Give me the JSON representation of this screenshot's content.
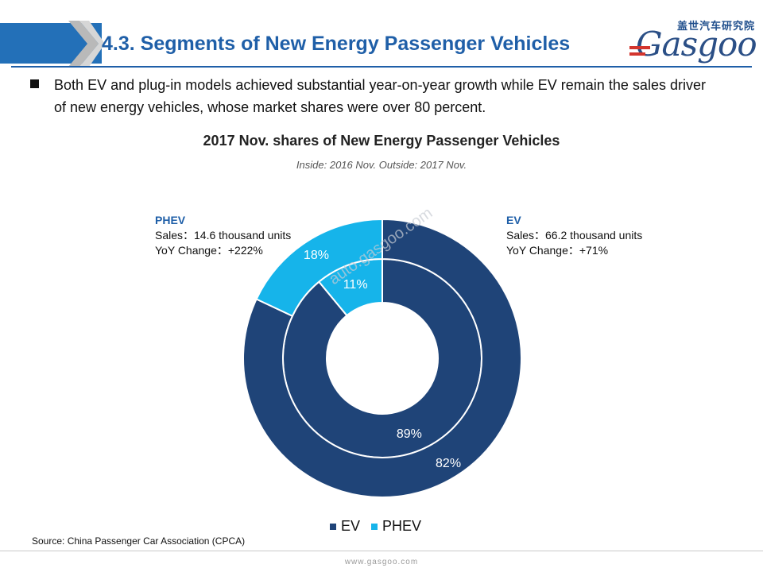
{
  "header": {
    "title": "4.3. Segments of New Energy Passenger Vehicles",
    "logo_cn": "盖世汽车研究院",
    "logo_text": "Gasgoo"
  },
  "bullet": {
    "text": "Both EV and plug-in models achieved substantial year-on-year growth while EV remain the sales driver of new energy vehicles, whose market shares were over 80 percent."
  },
  "chart_data": {
    "type": "donut",
    "title": "2017 Nov. shares of New Energy Passenger Vehicles",
    "subtitle": "Inside: 2016 Nov.  Outside: 2017 Nov.",
    "categories": [
      "EV",
      "PHEV"
    ],
    "colors": {
      "EV": "#1f4478",
      "PHEV": "#16b4ea"
    },
    "series": [
      {
        "name": "2016 Nov.",
        "ring": "inner",
        "values": [
          89,
          11
        ],
        "labels": [
          "89%",
          "11%"
        ]
      },
      {
        "name": "2017 Nov.",
        "ring": "outer",
        "values": [
          82,
          18
        ],
        "labels": [
          "82%",
          "18%"
        ]
      }
    ],
    "callouts": {
      "ev": {
        "name": "EV",
        "sales": "Sales：66.2 thousand units",
        "yoy": "YoY Change：+71%"
      },
      "phev": {
        "name": "PHEV",
        "sales": "Sales：14.6 thousand units",
        "yoy": "YoY Change：+222%"
      }
    },
    "legend": [
      "EV",
      "PHEV"
    ],
    "legend_position": "bottom"
  },
  "watermark": "auto.gasgoo.com",
  "source": "Source: China Passenger Car Association (CPCA)",
  "footer": "www.gasgoo.com"
}
